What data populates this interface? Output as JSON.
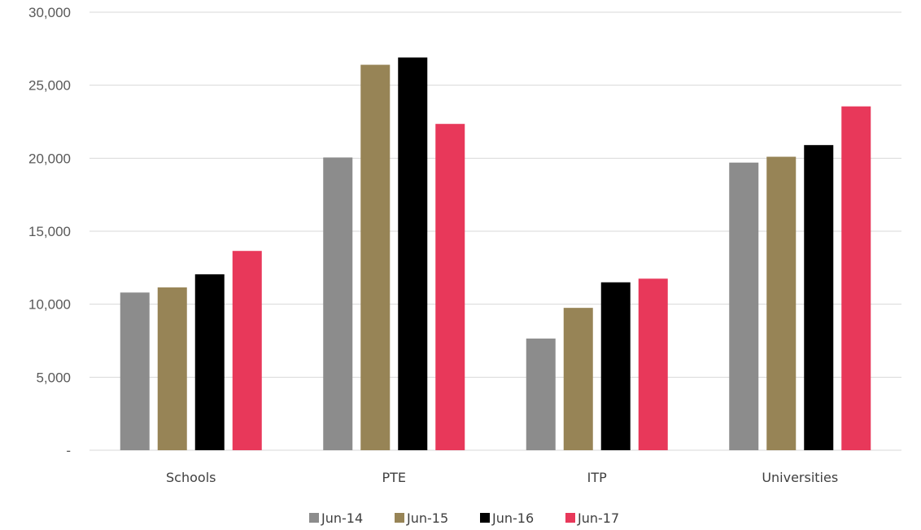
{
  "chart_data": {
    "type": "bar",
    "categories": [
      "Schools",
      "PTE",
      "ITP",
      "Universities"
    ],
    "series": [
      {
        "name": "Jun-14",
        "color": "#8c8c8c",
        "values": [
          10800,
          20050,
          7650,
          19700
        ]
      },
      {
        "name": "Jun-15",
        "color": "#978456",
        "values": [
          11150,
          26400,
          9750,
          20100
        ]
      },
      {
        "name": "Jun-16",
        "color": "#000000",
        "values": [
          12050,
          26900,
          11500,
          20900
        ]
      },
      {
        "name": "Jun-17",
        "color": "#e8385a",
        "values": [
          13650,
          22350,
          11750,
          23550
        ]
      }
    ],
    "y_ticks": [
      {
        "value": 0,
        "label": "-"
      },
      {
        "value": 5000,
        "label": "5,000"
      },
      {
        "value": 10000,
        "label": "10,000"
      },
      {
        "value": 15000,
        "label": "15,000"
      },
      {
        "value": 20000,
        "label": "20,000"
      },
      {
        "value": 25000,
        "label": "25,000"
      },
      {
        "value": 30000,
        "label": "30,000"
      }
    ],
    "ylim": [
      0,
      30000
    ],
    "grid": true,
    "legend_position": "bottom"
  }
}
